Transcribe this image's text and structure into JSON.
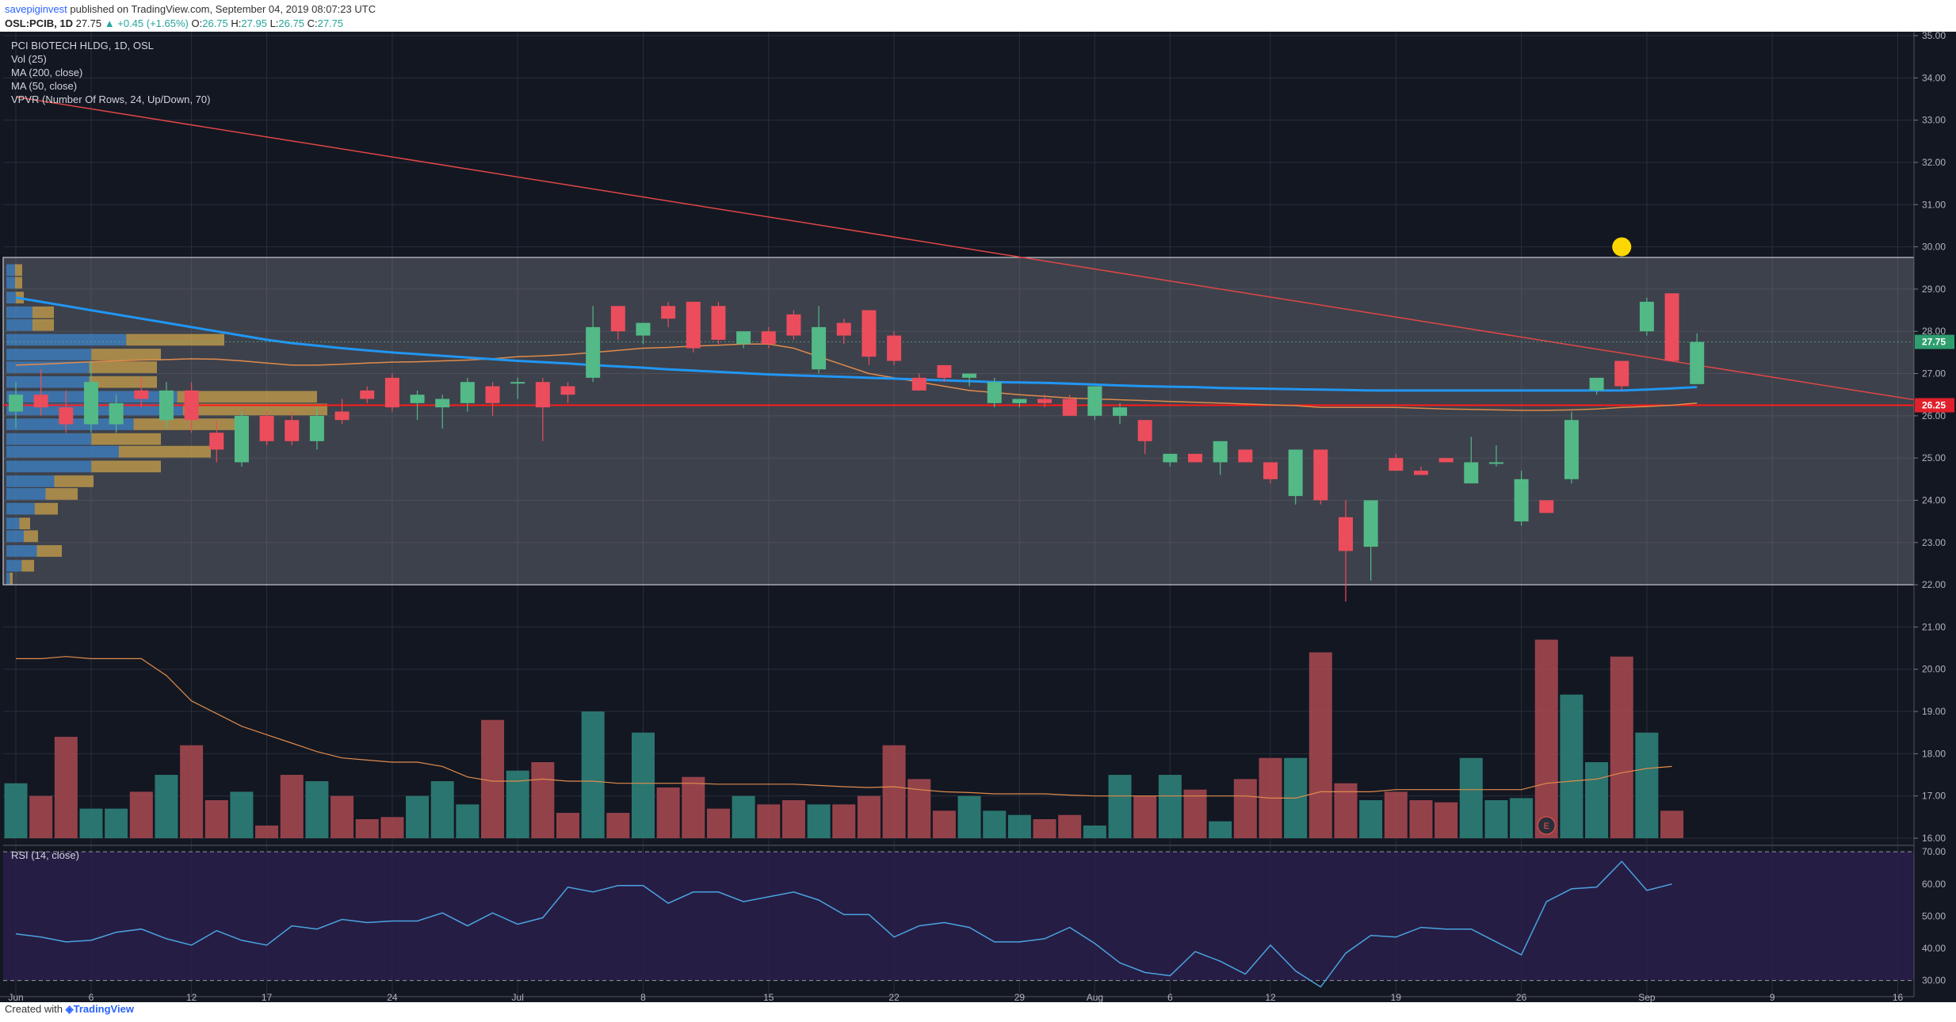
{
  "header": {
    "publisher": "savepiginvest",
    "published_text": "published on TradingView.com, September 04, 2019 08:07:23 UTC",
    "symbol": "OSL:PCIB, 1D",
    "price": "27.75",
    "change": "▲ +0.45 (+1.65%)",
    "ohlc": {
      "o_label": "O:",
      "o": "26.75",
      "h_label": "H:",
      "h": "27.95",
      "l_label": "L:",
      "l": "26.75",
      "c_label": "C:",
      "c": "27.75"
    }
  },
  "legend": {
    "title": "PCI BIOTECH HLDG, 1D, OSL",
    "vol": "Vol (25)",
    "ma200": "MA (200, close)",
    "ma50": "MA (50, close)",
    "vpvr": "VPVR (Number Of Rows, 24, Up/Down, 70)",
    "rsi": "RSI (14, close)"
  },
  "footer": {
    "created_with": "Created with",
    "brand": "TradingView"
  },
  "colors": {
    "bg": "#131722",
    "up": "#53b987",
    "down": "#eb4d5c",
    "ma200": "#2196f3",
    "ma50": "#e08b4c",
    "trend": "#e04646",
    "level": "#ff1a1a",
    "rsi": "#4aa3df",
    "rsi_band": "#2a1f4a",
    "marker": "#ffd700"
  },
  "chart_data": {
    "type": "candlestick",
    "symbol": "OSL:PCIB",
    "interval": "1D",
    "ylim": [
      16,
      35
    ],
    "y_ticks": [
      "16.00",
      "17.00",
      "18.00",
      "19.00",
      "20.00",
      "21.00",
      "22.00",
      "23.00",
      "24.00",
      "25.00",
      "26.00",
      "27.00",
      "28.00",
      "29.00",
      "30.00",
      "31.00",
      "32.00",
      "33.00",
      "34.00",
      "35.00"
    ],
    "x_labels": [
      {
        "label": "Jun",
        "i": 0
      },
      {
        "label": "6",
        "i": 3
      },
      {
        "label": "12",
        "i": 7
      },
      {
        "label": "17",
        "i": 10
      },
      {
        "label": "24",
        "i": 15
      },
      {
        "label": "Jul",
        "i": 20
      },
      {
        "label": "8",
        "i": 25
      },
      {
        "label": "15",
        "i": 30
      },
      {
        "label": "22",
        "i": 35
      },
      {
        "label": "29",
        "i": 40
      },
      {
        "label": "Aug",
        "i": 43
      },
      {
        "label": "6",
        "i": 46
      },
      {
        "label": "12",
        "i": 50
      },
      {
        "label": "19",
        "i": 55
      },
      {
        "label": "26",
        "i": 60
      },
      {
        "label": "Sep",
        "i": 65
      },
      {
        "label": "9",
        "i": 70
      },
      {
        "label": "16",
        "i": 75
      }
    ],
    "last_price_label": "27.75",
    "level_label": "26.25",
    "horizontal_level": 26.25,
    "range_box": [
      22.0,
      29.75
    ],
    "marker_price": 30.0,
    "trendline": [
      {
        "i": 0,
        "price": 33.55
      },
      {
        "i": 76.5,
        "price": 26.3
      }
    ],
    "candles": [
      {
        "o": 26.1,
        "h": 26.8,
        "l": 25.7,
        "c": 26.5
      },
      {
        "o": 26.5,
        "h": 27.1,
        "l": 26.0,
        "c": 26.2
      },
      {
        "o": 26.2,
        "h": 26.6,
        "l": 25.6,
        "c": 25.8
      },
      {
        "o": 25.8,
        "h": 27.3,
        "l": 25.6,
        "c": 26.8
      },
      {
        "o": 25.8,
        "h": 26.5,
        "l": 25.6,
        "c": 26.3
      },
      {
        "o": 26.6,
        "h": 26.9,
        "l": 26.2,
        "c": 26.4
      },
      {
        "o": 25.9,
        "h": 26.8,
        "l": 25.7,
        "c": 26.6
      },
      {
        "o": 26.6,
        "h": 26.8,
        "l": 25.6,
        "c": 25.9
      },
      {
        "o": 25.6,
        "h": 25.9,
        "l": 24.9,
        "c": 25.2
      },
      {
        "o": 24.9,
        "h": 26.1,
        "l": 24.8,
        "c": 26.0
      },
      {
        "o": 26.0,
        "h": 26.1,
        "l": 25.3,
        "c": 25.4
      },
      {
        "o": 25.9,
        "h": 26.1,
        "l": 25.3,
        "c": 25.4
      },
      {
        "o": 25.4,
        "h": 26.2,
        "l": 25.2,
        "c": 26.0
      },
      {
        "o": 26.1,
        "h": 26.4,
        "l": 25.8,
        "c": 25.9
      },
      {
        "o": 26.6,
        "h": 26.7,
        "l": 26.3,
        "c": 26.4
      },
      {
        "o": 26.9,
        "h": 27.0,
        "l": 26.1,
        "c": 26.2
      },
      {
        "o": 26.3,
        "h": 26.6,
        "l": 25.9,
        "c": 26.5
      },
      {
        "o": 26.2,
        "h": 26.5,
        "l": 25.7,
        "c": 26.4
      },
      {
        "o": 26.3,
        "h": 26.9,
        "l": 26.1,
        "c": 26.8
      },
      {
        "o": 26.7,
        "h": 26.8,
        "l": 26.0,
        "c": 26.3
      },
      {
        "o": 26.8,
        "h": 26.9,
        "l": 26.4,
        "c": 26.8
      },
      {
        "o": 26.8,
        "h": 26.9,
        "l": 25.4,
        "c": 26.2
      },
      {
        "o": 26.7,
        "h": 26.8,
        "l": 26.3,
        "c": 26.5
      },
      {
        "o": 26.9,
        "h": 28.6,
        "l": 26.8,
        "c": 28.1
      },
      {
        "o": 28.6,
        "h": 28.6,
        "l": 27.8,
        "c": 28.0
      },
      {
        "o": 27.9,
        "h": 28.2,
        "l": 27.7,
        "c": 28.2
      },
      {
        "o": 28.6,
        "h": 28.7,
        "l": 28.1,
        "c": 28.3
      },
      {
        "o": 28.7,
        "h": 28.7,
        "l": 27.5,
        "c": 27.6
      },
      {
        "o": 28.6,
        "h": 28.7,
        "l": 27.7,
        "c": 27.8
      },
      {
        "o": 27.7,
        "h": 28.0,
        "l": 27.6,
        "c": 28.0
      },
      {
        "o": 28.0,
        "h": 28.1,
        "l": 27.6,
        "c": 27.7
      },
      {
        "o": 28.4,
        "h": 28.5,
        "l": 27.8,
        "c": 27.9
      },
      {
        "o": 27.1,
        "h": 28.6,
        "l": 27.0,
        "c": 28.1
      },
      {
        "o": 28.2,
        "h": 28.3,
        "l": 27.7,
        "c": 27.9
      },
      {
        "o": 28.5,
        "h": 28.5,
        "l": 27.2,
        "c": 27.4
      },
      {
        "o": 27.9,
        "h": 28.0,
        "l": 27.2,
        "c": 27.3
      },
      {
        "o": 26.9,
        "h": 27.0,
        "l": 26.6,
        "c": 26.6
      },
      {
        "o": 27.2,
        "h": 27.2,
        "l": 26.8,
        "c": 26.9
      },
      {
        "o": 26.9,
        "h": 27.0,
        "l": 26.7,
        "c": 27.0
      },
      {
        "o": 26.3,
        "h": 26.9,
        "l": 26.2,
        "c": 26.8
      },
      {
        "o": 26.3,
        "h": 26.4,
        "l": 26.2,
        "c": 26.4
      },
      {
        "o": 26.4,
        "h": 26.5,
        "l": 26.2,
        "c": 26.3
      },
      {
        "o": 26.4,
        "h": 26.5,
        "l": 26.0,
        "c": 26.0
      },
      {
        "o": 26.0,
        "h": 26.7,
        "l": 25.9,
        "c": 26.7
      },
      {
        "o": 26.0,
        "h": 26.3,
        "l": 25.8,
        "c": 26.2
      },
      {
        "o": 25.9,
        "h": 25.9,
        "l": 25.1,
        "c": 25.4
      },
      {
        "o": 24.9,
        "h": 25.1,
        "l": 24.8,
        "c": 25.1
      },
      {
        "o": 25.1,
        "h": 25.1,
        "l": 24.9,
        "c": 24.9
      },
      {
        "o": 24.9,
        "h": 25.4,
        "l": 24.6,
        "c": 25.4
      },
      {
        "o": 25.2,
        "h": 25.2,
        "l": 24.9,
        "c": 24.9
      },
      {
        "o": 24.9,
        "h": 24.9,
        "l": 24.4,
        "c": 24.5
      },
      {
        "o": 24.1,
        "h": 25.2,
        "l": 23.9,
        "c": 25.2
      },
      {
        "o": 25.2,
        "h": 25.2,
        "l": 23.9,
        "c": 24.0
      },
      {
        "o": 23.6,
        "h": 24.0,
        "l": 21.6,
        "c": 22.8
      },
      {
        "o": 22.9,
        "h": 24.0,
        "l": 22.1,
        "c": 24.0
      },
      {
        "o": 25.0,
        "h": 25.1,
        "l": 24.7,
        "c": 24.7
      },
      {
        "o": 24.7,
        "h": 24.8,
        "l": 24.6,
        "c": 24.6
      },
      {
        "o": 25.0,
        "h": 25.0,
        "l": 24.9,
        "c": 24.9
      },
      {
        "o": 24.4,
        "h": 25.5,
        "l": 24.4,
        "c": 24.9
      },
      {
        "o": 24.9,
        "h": 25.3,
        "l": 24.8,
        "c": 24.9
      },
      {
        "o": 23.5,
        "h": 24.7,
        "l": 23.4,
        "c": 24.5
      },
      {
        "o": 24.0,
        "h": 24.0,
        "l": 23.7,
        "c": 23.7
      },
      {
        "o": 24.5,
        "h": 26.1,
        "l": 24.4,
        "c": 25.9
      },
      {
        "o": 26.6,
        "h": 26.9,
        "l": 26.5,
        "c": 26.9
      },
      {
        "o": 27.3,
        "h": 27.3,
        "l": 26.6,
        "c": 26.7
      },
      {
        "o": 28.0,
        "h": 28.8,
        "l": 27.9,
        "c": 28.7
      },
      {
        "o": 28.9,
        "h": 28.9,
        "l": 27.3,
        "c": 27.3
      },
      {
        "o": 26.75,
        "h": 27.95,
        "l": 26.75,
        "c": 27.75
      }
    ],
    "volume": [
      17.3,
      17.0,
      18.4,
      16.7,
      16.7,
      17.1,
      17.5,
      18.2,
      16.9,
      17.1,
      16.3,
      17.5,
      17.35,
      17.0,
      16.45,
      16.5,
      17.0,
      17.35,
      16.8,
      18.8,
      17.6,
      17.8,
      16.6,
      19.0,
      16.6,
      18.5,
      17.2,
      17.45,
      16.7,
      17.0,
      16.8,
      16.9,
      16.8,
      16.8,
      17.0,
      18.2,
      17.4,
      16.65,
      17.0,
      16.65,
      16.55,
      16.45,
      16.55,
      16.3,
      17.5,
      17.0,
      17.5,
      17.15,
      16.4,
      17.4,
      17.9,
      17.9,
      20.4,
      17.3,
      16.9,
      17.1,
      16.9,
      16.85,
      17.9,
      16.9,
      16.95,
      20.7,
      19.4,
      17.8,
      20.3,
      18.5,
      16.65
    ],
    "volume_ma": [
      20.25,
      20.25,
      20.3,
      20.25,
      20.25,
      20.25,
      19.85,
      19.25,
      18.95,
      18.65,
      18.45,
      18.25,
      18.05,
      17.9,
      17.85,
      17.8,
      17.8,
      17.7,
      17.45,
      17.35,
      17.35,
      17.4,
      17.35,
      17.35,
      17.3,
      17.3,
      17.3,
      17.3,
      17.28,
      17.28,
      17.28,
      17.28,
      17.25,
      17.22,
      17.2,
      17.22,
      17.15,
      17.1,
      17.08,
      17.05,
      17.05,
      17.05,
      17.02,
      17.0,
      17.0,
      17.0,
      17.0,
      17.0,
      17.0,
      17.0,
      16.95,
      16.95,
      17.1,
      17.1,
      17.1,
      17.15,
      17.15,
      17.15,
      17.15,
      17.15,
      17.15,
      17.3,
      17.35,
      17.4,
      17.55,
      17.65,
      17.7
    ],
    "ma200": [
      28.8,
      28.7,
      28.6,
      28.5,
      28.4,
      28.3,
      28.2,
      28.1,
      28.0,
      27.9,
      27.8,
      27.72,
      27.66,
      27.6,
      27.55,
      27.5,
      27.46,
      27.42,
      27.38,
      27.34,
      27.3,
      27.27,
      27.24,
      27.2,
      27.17,
      27.14,
      27.1,
      27.07,
      27.04,
      27.01,
      26.98,
      26.96,
      26.94,
      26.92,
      26.9,
      26.88,
      26.86,
      26.84,
      26.82,
      26.8,
      26.79,
      26.78,
      26.76,
      26.74,
      26.72,
      26.7,
      26.69,
      26.68,
      26.66,
      26.65,
      26.64,
      26.63,
      26.62,
      26.61,
      26.6,
      26.6,
      26.6,
      26.6,
      26.6,
      26.6,
      26.6,
      26.6,
      26.6,
      26.6,
      26.6,
      26.62,
      26.65,
      26.68
    ],
    "ma50": [
      27.2,
      27.22,
      27.25,
      27.28,
      27.3,
      27.32,
      27.33,
      27.35,
      27.34,
      27.3,
      27.25,
      27.2,
      27.2,
      27.22,
      27.25,
      27.27,
      27.28,
      27.3,
      27.32,
      27.35,
      27.4,
      27.42,
      27.45,
      27.5,
      27.55,
      27.6,
      27.62,
      27.65,
      27.67,
      27.7,
      27.7,
      27.6,
      27.4,
      27.2,
      27.0,
      26.9,
      26.8,
      26.7,
      26.6,
      26.55,
      26.5,
      26.46,
      26.42,
      26.4,
      26.38,
      26.36,
      26.34,
      26.32,
      26.3,
      26.28,
      26.26,
      26.24,
      26.2,
      26.2,
      26.2,
      26.2,
      26.18,
      26.16,
      26.15,
      26.14,
      26.13,
      26.13,
      26.14,
      26.16,
      26.2,
      26.22,
      26.25,
      26.3
    ],
    "vpvr": [
      {
        "price": 22.15,
        "w": 8
      },
      {
        "price": 22.45,
        "w": 35
      },
      {
        "price": 22.8,
        "w": 70
      },
      {
        "price": 23.15,
        "w": 40
      },
      {
        "price": 23.45,
        "w": 30
      },
      {
        "price": 23.8,
        "w": 65
      },
      {
        "price": 24.15,
        "w": 90
      },
      {
        "price": 24.45,
        "w": 110
      },
      {
        "price": 24.8,
        "w": 195
      },
      {
        "price": 25.15,
        "w": 258
      },
      {
        "price": 25.45,
        "w": 195
      },
      {
        "price": 25.8,
        "w": 292
      },
      {
        "price": 26.15,
        "w": 405
      },
      {
        "price": 26.45,
        "w": 392
      },
      {
        "price": 26.8,
        "w": 190
      },
      {
        "price": 27.15,
        "w": 190
      },
      {
        "price": 27.45,
        "w": 195
      },
      {
        "price": 27.8,
        "w": 275
      },
      {
        "price": 28.15,
        "w": 60
      },
      {
        "price": 28.45,
        "w": 60
      },
      {
        "price": 28.8,
        "w": 22
      },
      {
        "price": 29.15,
        "w": 20
      },
      {
        "price": 29.45,
        "w": 20
      }
    ],
    "rsi": [
      44.5,
      43.5,
      42.0,
      42.5,
      45.0,
      46.0,
      43.0,
      41.0,
      45.5,
      42.5,
      41.0,
      47.0,
      46.0,
      49.0,
      48.0,
      48.5,
      48.5,
      51.0,
      47.0,
      51.0,
      47.5,
      49.5,
      59.0,
      57.5,
      59.5,
      59.5,
      54.0,
      57.5,
      57.5,
      54.5,
      56.0,
      57.5,
      55.0,
      50.5,
      50.5,
      43.5,
      47.0,
      48.0,
      46.5,
      42.0,
      42.0,
      43.0,
      46.5,
      41.5,
      35.5,
      32.5,
      31.5,
      39.0,
      36.0,
      32.0,
      41.0,
      33.0,
      28.0,
      38.5,
      44.0,
      43.5,
      46.5,
      46.0,
      46.0,
      42.0,
      38.0,
      54.5,
      58.5,
      59.0,
      67.0,
      58.0,
      60.0
    ],
    "rsi_ticks": [
      "30.00",
      "40.00",
      "50.00",
      "60.00",
      "70.00"
    ],
    "rsi_levels": [
      30,
      70
    ],
    "rsi_range": [
      25,
      72
    ]
  }
}
